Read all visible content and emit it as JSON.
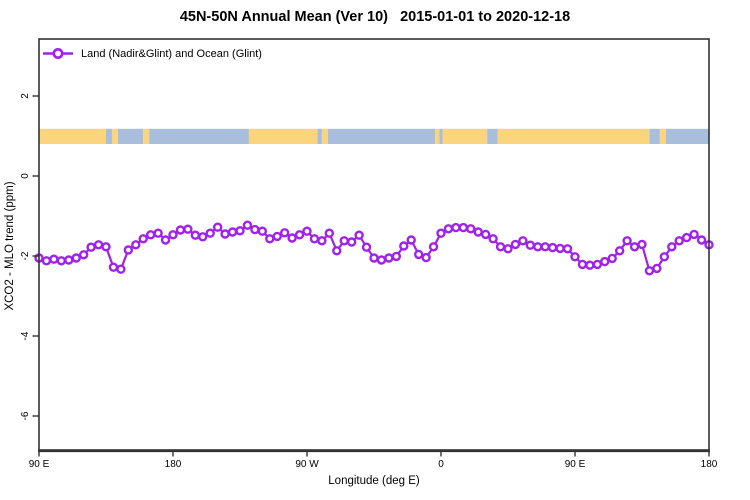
{
  "title": "45N-50N Annual Mean (Ver 10)   2015-01-01 to 2020-12-18",
  "legend": {
    "label": "Land (Nadir&Glint) and Ocean (Glint)",
    "marker": "open-circle-on-line"
  },
  "axes": {
    "x": {
      "title": "Longitude (deg E)",
      "ticks": [
        {
          "pos": 90,
          "label": "90 E"
        },
        {
          "pos": 180,
          "label": "180"
        },
        {
          "pos": 270,
          "label": "90 W"
        },
        {
          "pos": 360,
          "label": "0"
        },
        {
          "pos": 450,
          "label": "90 E"
        },
        {
          "pos": 540,
          "label": "180"
        }
      ]
    },
    "y": {
      "title": "XCO2 - MLO trend (ppm)",
      "ticks": [
        {
          "value": 2,
          "label": "2"
        },
        {
          "value": 0,
          "label": "0"
        },
        {
          "value": -2,
          "label": "-2"
        },
        {
          "value": -4,
          "label": "-4"
        },
        {
          "value": -6,
          "label": "-6"
        }
      ]
    }
  },
  "colors": {
    "series": "#A020F0",
    "land": "#FBD57E",
    "ocean": "#A8BEDC",
    "axis": "#333333",
    "text": "#000000",
    "background": "#FFFFFF"
  },
  "chart_data": {
    "type": "line",
    "title": "45N-50N Annual Mean (Ver 10)   2015-01-01 to 2020-12-18",
    "xlabel": "Longitude (deg E)",
    "ylabel": "XCO2 - MLO trend (ppm)",
    "xlim": [
      90,
      540
    ],
    "ylim": [
      -6.85,
      3.425
    ],
    "x_axis_note": "longitude axis wraps around the globe: 90E to 180 to 90W to 0 to 90E to 180",
    "legend_position": "top-left-inside",
    "grid": false,
    "x": [
      90,
      95,
      100,
      105,
      110,
      115,
      120,
      125,
      130,
      135,
      140,
      145,
      150,
      155,
      160,
      165,
      170,
      175,
      180,
      185,
      190,
      195,
      200,
      205,
      210,
      215,
      220,
      225,
      230,
      235,
      240,
      245,
      250,
      255,
      260,
      265,
      270,
      275,
      280,
      285,
      290,
      295,
      300,
      305,
      310,
      315,
      320,
      325,
      330,
      335,
      340,
      345,
      350,
      355,
      360,
      365,
      370,
      375,
      380,
      385,
      390,
      395,
      400,
      405,
      410,
      415,
      420,
      425,
      430,
      435,
      440,
      445,
      450,
      455,
      460,
      465,
      470,
      475,
      480,
      485,
      490,
      495,
      500,
      505,
      510,
      515,
      520,
      525,
      530,
      535,
      540
    ],
    "series": [
      {
        "name": "Land (Nadir&Glint) and Ocean (Glint)",
        "marker": "open-circle",
        "values": [
          -2.05,
          -2.12,
          -2.08,
          -2.12,
          -2.1,
          -2.05,
          -1.97,
          -1.78,
          -1.72,
          -1.77,
          -2.28,
          -2.33,
          -1.85,
          -1.72,
          -1.57,
          -1.47,
          -1.43,
          -1.6,
          -1.47,
          -1.35,
          -1.33,
          -1.48,
          -1.52,
          -1.43,
          -1.28,
          -1.45,
          -1.4,
          -1.37,
          -1.23,
          -1.34,
          -1.38,
          -1.57,
          -1.51,
          -1.42,
          -1.55,
          -1.47,
          -1.38,
          -1.57,
          -1.62,
          -1.43,
          -1.87,
          -1.62,
          -1.65,
          -1.48,
          -1.78,
          -2.05,
          -2.1,
          -2.05,
          -2.01,
          -1.75,
          -1.6,
          -1.96,
          -2.04,
          -1.77,
          -1.43,
          -1.32,
          -1.29,
          -1.29,
          -1.32,
          -1.4,
          -1.46,
          -1.57,
          -1.77,
          -1.82,
          -1.71,
          -1.62,
          -1.73,
          -1.77,
          -1.77,
          -1.79,
          -1.81,
          -1.82,
          -2.02,
          -2.21,
          -2.23,
          -2.21,
          -2.14,
          -2.06,
          -1.87,
          -1.62,
          -1.77,
          -1.71,
          -2.37,
          -2.31,
          -2.02,
          -1.77,
          -1.62,
          -1.54,
          -1.46,
          -1.6,
          -1.72
        ]
      }
    ],
    "map_strip": {
      "description": "land/ocean band of the 45N-50N latitude zone drawn at y = 1",
      "center_value": 1,
      "top_value": 1.18,
      "bottom_value": 0.8,
      "segments": [
        [
          90,
          135,
          "land"
        ],
        [
          135,
          139,
          "ocean"
        ],
        [
          139,
          143,
          "land"
        ],
        [
          143,
          160,
          "ocean"
        ],
        [
          160,
          164,
          "land"
        ],
        [
          164,
          231,
          "ocean"
        ],
        [
          231,
          277,
          "land"
        ],
        [
          277,
          280,
          "ocean"
        ],
        [
          280,
          284,
          "land"
        ],
        [
          284,
          356,
          "ocean"
        ],
        [
          356,
          359,
          "land"
        ],
        [
          359,
          361,
          "ocean"
        ],
        [
          361,
          391,
          "land"
        ],
        [
          391,
          398,
          "ocean"
        ],
        [
          398,
          500,
          "land"
        ],
        [
          500,
          507,
          "ocean"
        ],
        [
          507,
          511,
          "land"
        ],
        [
          511,
          540,
          "ocean"
        ]
      ]
    }
  }
}
